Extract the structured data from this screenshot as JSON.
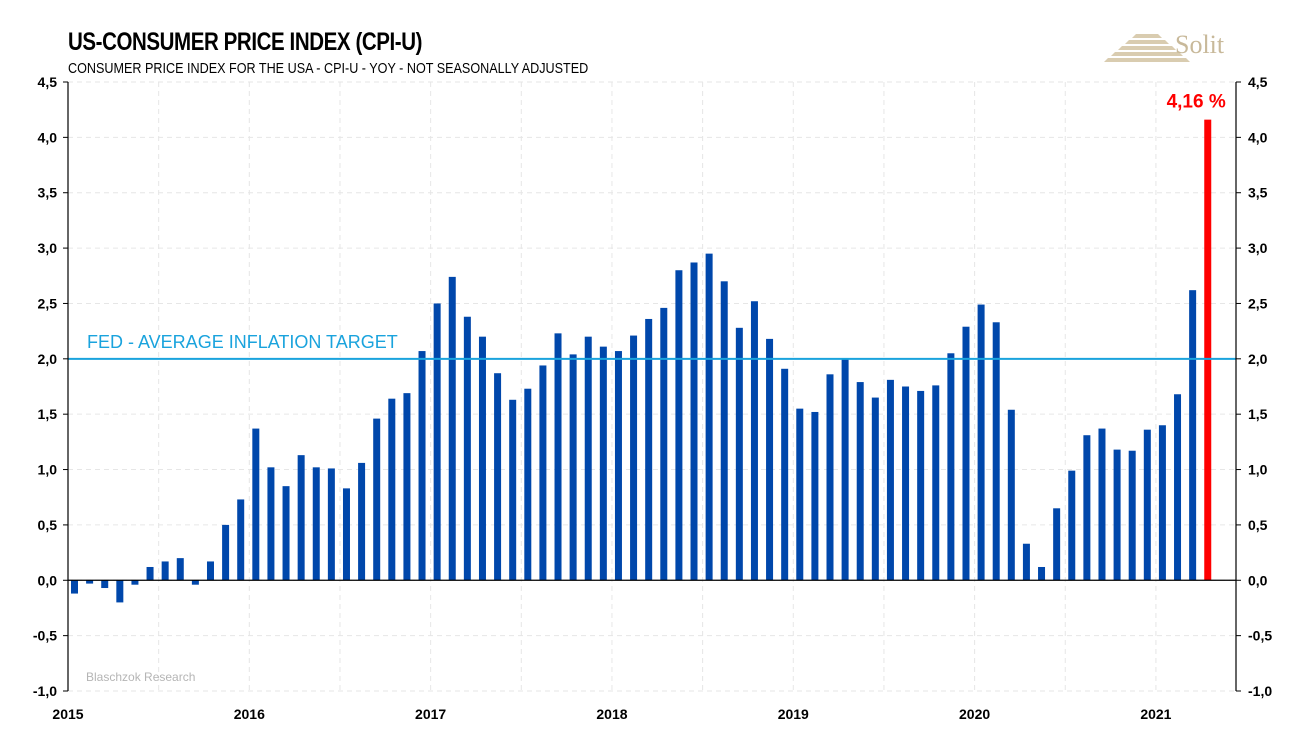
{
  "header": {
    "title": "US-CONSUMER PRICE INDEX (CPI-U)",
    "subtitle": "CONSUMER PRICE INDEX FOR THE USA - CPI-U - YOY - NOT SEASONALLY ADJUSTED",
    "logo_text": "Solit"
  },
  "colors": {
    "bar": "#0047ab",
    "last_bar": "#ff0000",
    "target_line": "#1aa3dd",
    "logo": "#c8b99a"
  },
  "chart_data": {
    "type": "bar",
    "title": "US-CONSUMER PRICE INDEX (CPI-U)",
    "subtitle": "CONSUMER PRICE INDEX FOR THE USA - CPI-U - YOY - NOT SEASONALLY ADJUSTED",
    "xlabel": "",
    "ylabel": "",
    "ylim": [
      -1.0,
      4.5
    ],
    "yticks": [
      4.5,
      4.0,
      3.5,
      3.0,
      2.5,
      2.0,
      1.5,
      1.0,
      0.5,
      0.0,
      -0.5,
      -1.0
    ],
    "ytick_labels": [
      "4,5",
      "4,0",
      "3,5",
      "3,0",
      "2,5",
      "2,0",
      "1,5",
      "1,0",
      "0,5",
      "0,0",
      "-0,5",
      "-1,0"
    ],
    "xtick_labels": [
      "2015",
      "2016",
      "2017",
      "2018",
      "2019",
      "2020",
      "2021"
    ],
    "start": "2015-01",
    "frequency": "monthly",
    "grid": true,
    "values": [
      -0.12,
      -0.03,
      -0.07,
      -0.2,
      -0.04,
      0.12,
      0.17,
      0.2,
      -0.04,
      0.17,
      0.5,
      0.73,
      1.37,
      1.02,
      0.85,
      1.13,
      1.02,
      1.01,
      0.83,
      1.06,
      1.46,
      1.64,
      1.69,
      2.07,
      2.5,
      2.74,
      2.38,
      2.2,
      1.87,
      1.63,
      1.73,
      1.94,
      2.23,
      2.04,
      2.2,
      2.11,
      2.07,
      2.21,
      2.36,
      2.46,
      2.8,
      2.87,
      2.95,
      2.7,
      2.28,
      2.52,
      2.18,
      1.91,
      1.55,
      1.52,
      1.86,
      2.0,
      1.79,
      1.65,
      1.81,
      1.75,
      1.71,
      1.76,
      2.05,
      2.29,
      2.49,
      2.33,
      1.54,
      0.33,
      0.12,
      0.65,
      0.99,
      1.31,
      1.37,
      1.18,
      1.17,
      1.36,
      1.4,
      1.68,
      2.62,
      4.16
    ],
    "reference_line": {
      "value": 2.0,
      "label": "FED - AVERAGE INFLATION TARGET"
    },
    "annotations": [
      {
        "text": "4,16 %",
        "target": "last-bar"
      }
    ],
    "watermark": "Blaschzok Research"
  }
}
